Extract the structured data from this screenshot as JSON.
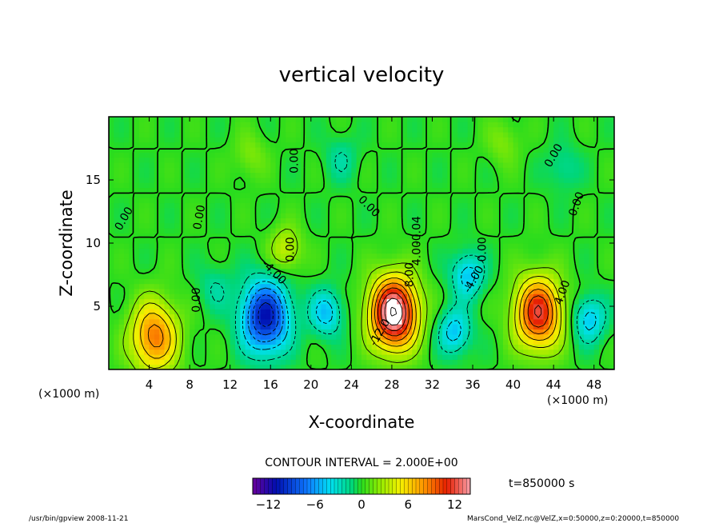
{
  "chart_data": {
    "type": "heatmap",
    "title": "vertical velocity",
    "xlabel": "X-coordinate",
    "ylabel": "Z-coordinate",
    "x_unit_left": "(×1000 m)",
    "x_unit_right": "(×1000 m)",
    "xlim": [
      0,
      50
    ],
    "ylim": [
      0,
      20
    ],
    "x_ticks": [
      4,
      8,
      12,
      16,
      20,
      24,
      28,
      32,
      36,
      40,
      44,
      48
    ],
    "y_ticks": [
      5,
      10,
      15
    ],
    "contour_interval_text": "CONTOUR INTERVAL = 2.000E+00",
    "time_label": "t=850000 s",
    "colorbar": {
      "min": -14,
      "max": 14,
      "step": 0.5,
      "tick_values": [
        -12,
        -6,
        0,
        6,
        12
      ],
      "tick_labels": [
        "−12",
        "−6",
        "0",
        "6",
        "12"
      ]
    },
    "features": [
      {
        "x": 4.5,
        "z": 2.6,
        "peak": 9
      },
      {
        "x": 15.5,
        "z": 4.2,
        "peak": -11
      },
      {
        "x": 21.5,
        "z": 4.5,
        "peak": -5
      },
      {
        "x": 28.2,
        "z": 4.5,
        "peak": 16
      },
      {
        "x": 34.2,
        "z": 3.0,
        "peak": -5
      },
      {
        "x": 35.5,
        "z": 7.5,
        "peak": -5
      },
      {
        "x": 42.5,
        "z": 4.5,
        "peak": 12
      },
      {
        "x": 47.5,
        "z": 4.0,
        "peak": -5
      },
      {
        "x": 10.5,
        "z": 6.5,
        "peak": -2
      },
      {
        "x": 17.5,
        "z": 9.5,
        "peak": 4
      },
      {
        "x": 23.0,
        "z": 16.7,
        "peak": -2
      },
      {
        "x": 14.0,
        "z": 17.0,
        "peak": 2
      },
      {
        "x": 39.0,
        "z": 18.0,
        "peak": 2
      },
      {
        "x": 45.0,
        "z": 16.0,
        "peak": -2
      }
    ],
    "contour_labels": [
      "0.00",
      "0.00",
      "0.00",
      "0.00",
      "0.00",
      "0.00",
      "0.00",
      "0.00",
      "0.00",
      "-4.00",
      "-4.00",
      "4.00",
      "8.00",
      "-12.0",
      "4.00",
      "-0.04"
    ]
  },
  "footer": {
    "left": "/usr/bin/gpview   2008-11-21",
    "right": "MarsCond_VelZ.nc@VelZ,x=0:50000,z=0:20000,t=850000"
  }
}
